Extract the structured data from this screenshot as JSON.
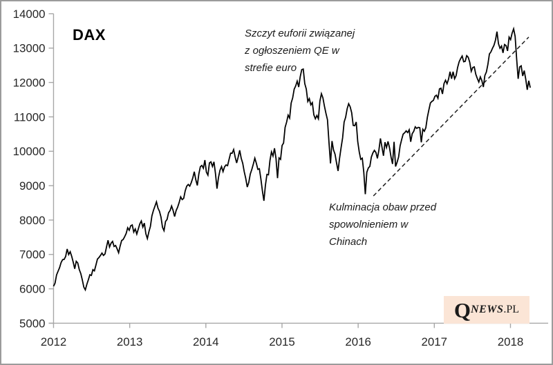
{
  "window": {
    "background": "#ffffff",
    "border_color": "#9b9b9b"
  },
  "logo": {
    "q": "Q",
    "news": "NEWS",
    "pl": ".PL",
    "background": "#fbe5d6",
    "text_color": "#1a1a1a"
  },
  "chart_data": {
    "type": "line",
    "title": "DAX",
    "xlabel": "",
    "ylabel": "",
    "grid": false,
    "legend": "none",
    "axis_color": "#a6a6a6",
    "tick_label_color": "#262626",
    "xlim": [
      2012,
      2018.486
    ],
    "ylim": [
      5000,
      14000
    ],
    "xticks": [
      2012,
      2013,
      2014,
      2015,
      2016,
      2017,
      2018
    ],
    "yticks": [
      5000,
      6000,
      7000,
      8000,
      9000,
      10000,
      11000,
      12000,
      13000,
      14000
    ],
    "annotations": [
      {
        "id": "qe-euphoria",
        "lines": [
          "Szczyt euforii związanej",
          "z ogłoszeniem QE w",
          "strefie euro"
        ],
        "points_at": {
          "x": 2015.28,
          "y": 12390
        }
      },
      {
        "id": "china-fears",
        "lines": [
          "Kulminacja obaw przed",
          "spowolnieniem w",
          "Chinach"
        ],
        "points_at": {
          "x": 2016.1,
          "y": 8753
        }
      }
    ],
    "trendline": {
      "style": "dashed",
      "color": "#1a1a1a",
      "x1": 2016.2,
      "y1": 8700,
      "x2": 2018.24,
      "y2": 13320
    },
    "series": [
      {
        "name": "DAX",
        "color": "#000000",
        "t_start": 2012.0,
        "t_end": 2018.26,
        "values": [
          6075,
          6166,
          6404,
          6512,
          6617,
          6766,
          6848,
          6856,
          6941,
          7158,
          6996,
          7079,
          6946,
          6775,
          6583,
          6801,
          6750,
          6561,
          6444,
          6262,
          6050,
          5969,
          6130,
          6263,
          6409,
          6391,
          6557,
          6523,
          6689,
          6865,
          6910,
          6971,
          7040,
          6971,
          7014,
          7216,
          7413,
          7216,
          7326,
          7380,
          7232,
          7260,
          7163,
          7049,
          7244,
          7405,
          7435,
          7517,
          7612,
          7776,
          7702,
          7833,
          7858,
          7650,
          7741,
          7593,
          7741,
          7889,
          7973,
          7795,
          7911,
          7600,
          7460,
          7659,
          7814,
          8122,
          8279,
          8404,
          8530,
          8348,
          8254,
          8086,
          7789,
          7692,
          7959,
          8017,
          8212,
          8276,
          8408,
          8278,
          8103,
          8275,
          8376,
          8509,
          8675,
          8594,
          8629,
          8850,
          8985,
          9034,
          8986,
          9088,
          9225,
          9405,
          9172,
          9006,
          9336,
          9552,
          9589,
          9506,
          9743,
          9392,
          9306,
          9662,
          9692,
          9559,
          9692,
          9350,
          8913,
          9243,
          9451,
          9556,
          9409,
          9548,
          9603,
          9581,
          9768,
          9943,
          9943,
          10051,
          9833,
          9661,
          9832,
          10029,
          9797,
          9652,
          9407,
          9210,
          8959,
          9092,
          9339,
          9470,
          9626,
          9799,
          9651,
          9474,
          9490,
          9196,
          8850,
          8560,
          9011,
          9327,
          9315,
          9733,
          9981,
          9862,
          10087,
          9787,
          9219,
          9806,
          9765,
          10167,
          10242,
          10694,
          10846,
          11050,
          10964,
          11401,
          11550,
          11805,
          11901,
          12039,
          11868,
          12168,
          12374,
          12390,
          11966,
          11810,
          11447,
          11532,
          11350,
          11414,
          11059,
          10945,
          11040,
          10945,
          11460,
          11674,
          11550,
          11309,
          11103,
          10916,
          10259,
          9648,
          10298,
          10038,
          9916,
          9660,
          9428,
          9798,
          10104,
          10388,
          10850,
          10988,
          11235,
          11382,
          11293,
          11119,
          10752,
          10743,
          10850,
          10283,
          9979,
          9765,
          9798,
          9392,
          8753,
          9388,
          9513,
          9561,
          9831,
          9951,
          10026,
          9966,
          9794,
          10039,
          10374,
          10123,
          9870,
          10263,
          10107,
          10286,
          10103,
          9834,
          9631,
          10274,
          9557,
          9680,
          9833,
          10157,
          10337,
          10498,
          10538,
          10593,
          10544,
          10626,
          10276,
          10511,
          10580,
          10711,
          10665,
          10696,
          10685,
          10259,
          10640,
          10582,
          10684,
          10986,
          11203,
          11404,
          11450,
          11481,
          11599,
          11630,
          11540,
          11814,
          11834,
          11667,
          11967,
          12067,
          11963,
          12095,
          12313,
          12109,
          12313,
          12109,
          12200,
          12438,
          12602,
          12694,
          12770,
          12602,
          12615,
          12780,
          12733,
          12588,
          12325,
          12437,
          12453,
          12240,
          12118,
          12014,
          12162,
          12056,
          11869,
          12203,
          12304,
          12526,
          12829,
          12889,
          12992,
          13079,
          13230,
          13479,
          13127,
          12994,
          13060,
          12861,
          13104,
          13073,
          12918,
          13320,
          13245,
          13434,
          13560,
          13340,
          12687,
          12107,
          12452,
          12483,
          12190,
          12346,
          12100,
          11787,
          12050,
          11850
        ]
      }
    ]
  }
}
